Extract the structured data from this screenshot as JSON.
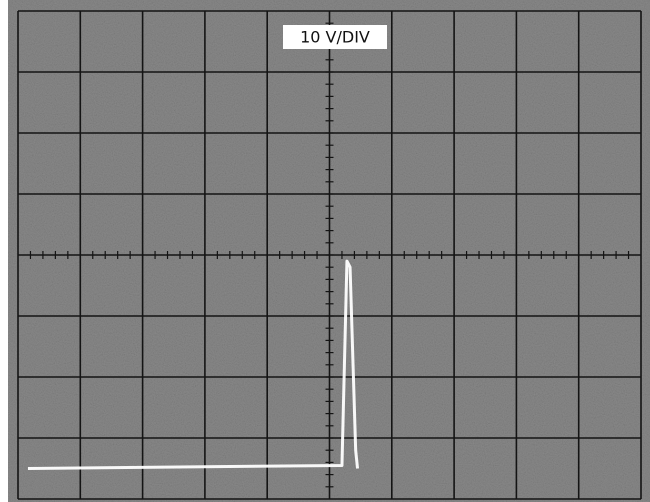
{
  "chart_data": {
    "type": "line",
    "annotation": "10 V/DIV",
    "x": [
      0.16,
      5.2,
      5.28,
      5.33,
      5.42,
      5.45
    ],
    "values": [
      5,
      5.5,
      39,
      38,
      8,
      5
    ],
    "color": "#ffffff",
    "xlim": [
      0,
      10
    ],
    "ylim": [
      0,
      80
    ],
    "xticks": [
      0,
      1,
      2,
      3,
      4,
      5,
      6,
      7,
      8,
      9,
      10
    ],
    "yticks": [
      0,
      10,
      20,
      30,
      40,
      50,
      60,
      70,
      80
    ],
    "grid": true
  }
}
